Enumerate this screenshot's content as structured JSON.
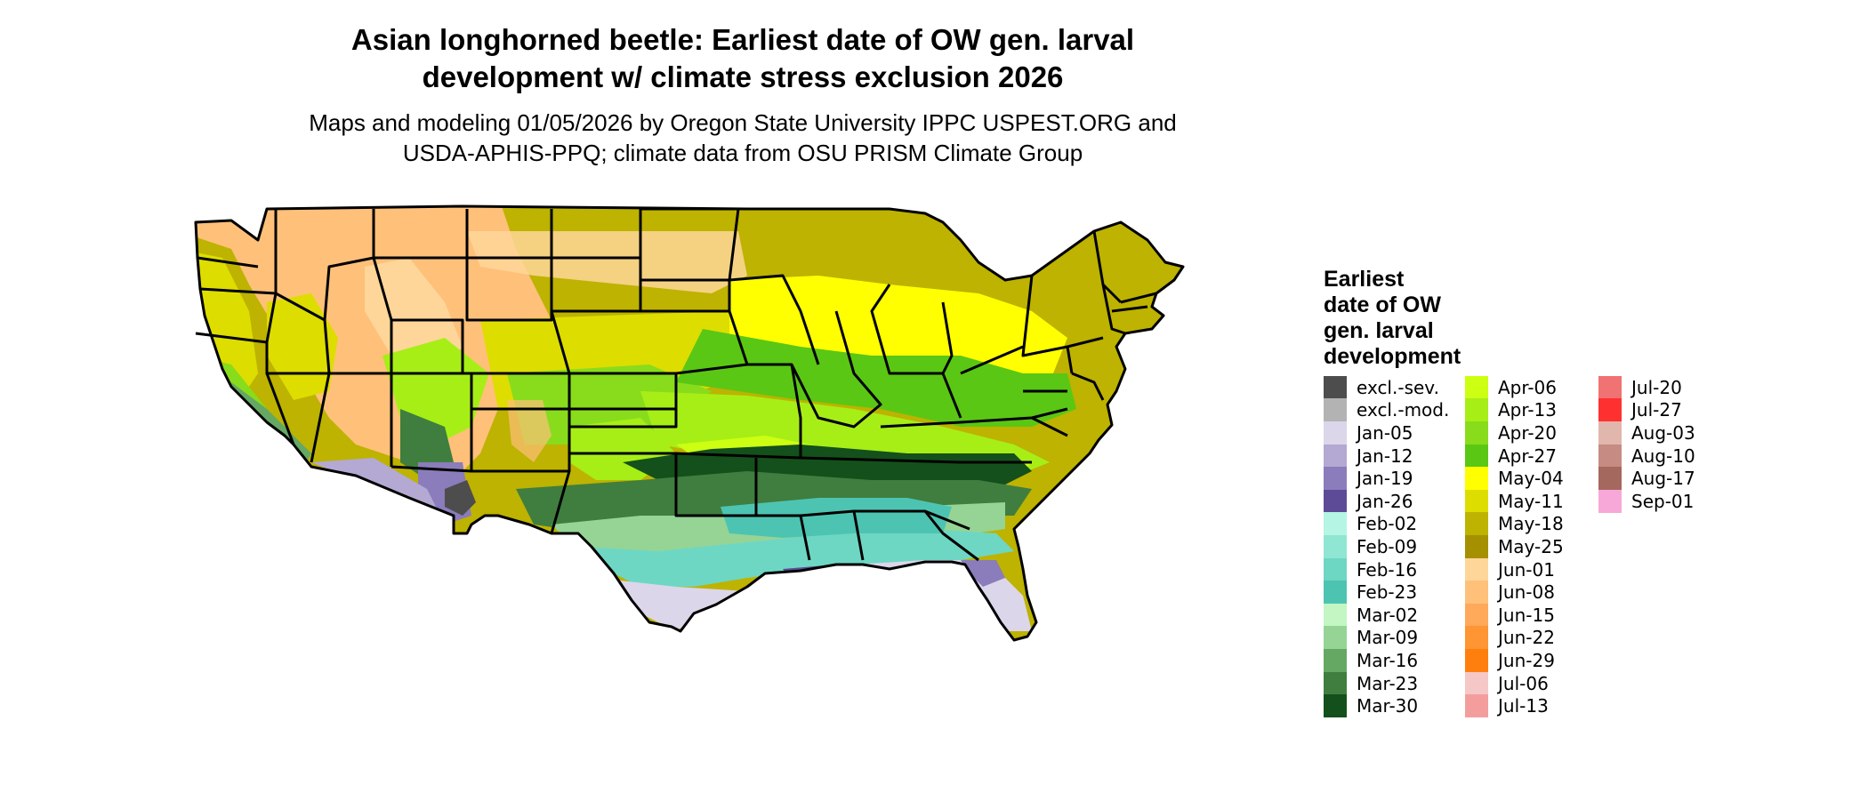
{
  "title": {
    "line1": "Asian longhorned beetle: Earliest date of OW gen. larval",
    "line2": "development w/ climate stress exclusion 2026"
  },
  "subtitle": {
    "line1": "Maps and modeling 01/05/2026 by Oregon State University IPPC USPEST.ORG and",
    "line2": "USDA-APHIS-PPQ; climate data from OSU PRISM Climate Group"
  },
  "map": {
    "region": "Contiguous United States",
    "colors": {
      "state_border": "#000000",
      "background": "#ffffff"
    }
  },
  "legend": {
    "title": [
      "Earliest",
      "date of OW",
      "gen. larval",
      "development"
    ],
    "columns": [
      [
        {
          "label": "excl.-sev.",
          "color": "#4d4d4d"
        },
        {
          "label": "excl.-mod.",
          "color": "#b3b3b3"
        },
        {
          "label": "Jan-05",
          "color": "#dcd6ea"
        },
        {
          "label": "Jan-12",
          "color": "#b3a9d2"
        },
        {
          "label": "Jan-19",
          "color": "#8b7cbb"
        },
        {
          "label": "Jan-26",
          "color": "#5d4b97"
        },
        {
          "label": "Feb-02",
          "color": "#b4f5e4"
        },
        {
          "label": "Feb-09",
          "color": "#8fe6d2"
        },
        {
          "label": "Feb-16",
          "color": "#6dd7c4"
        },
        {
          "label": "Feb-23",
          "color": "#4dc4b2"
        },
        {
          "label": "Mar-02",
          "color": "#c3f6c3"
        },
        {
          "label": "Mar-09",
          "color": "#95d495"
        },
        {
          "label": "Mar-16",
          "color": "#64a864"
        },
        {
          "label": "Mar-23",
          "color": "#3f7e3f"
        },
        {
          "label": "Mar-30",
          "color": "#14501b"
        }
      ],
      [
        {
          "label": "Apr-06",
          "color": "#cdff12"
        },
        {
          "label": "Apr-13",
          "color": "#a7ee17"
        },
        {
          "label": "Apr-20",
          "color": "#88dc1b"
        },
        {
          "label": "Apr-27",
          "color": "#5ac714"
        },
        {
          "label": "May-04",
          "color": "#ffff00"
        },
        {
          "label": "May-11",
          "color": "#dedd00"
        },
        {
          "label": "May-18",
          "color": "#bdb300"
        },
        {
          "label": "May-25",
          "color": "#a59000"
        },
        {
          "label": "Jun-01",
          "color": "#ffd699"
        },
        {
          "label": "Jun-08",
          "color": "#ffc07a"
        },
        {
          "label": "Jun-15",
          "color": "#ffa95a"
        },
        {
          "label": "Jun-22",
          "color": "#ff9533"
        },
        {
          "label": "Jun-29",
          "color": "#ff7f0e"
        },
        {
          "label": "Jul-06",
          "color": "#f6c7c7"
        },
        {
          "label": "Jul-13",
          "color": "#f49d9d"
        }
      ],
      [
        {
          "label": "Jul-20",
          "color": "#f07272"
        },
        {
          "label": "Jul-27",
          "color": "#ff3030"
        },
        {
          "label": "Aug-03",
          "color": "#e0b6ad"
        },
        {
          "label": "Aug-10",
          "color": "#c68b82"
        },
        {
          "label": "Aug-17",
          "color": "#a4685e"
        },
        {
          "label": "Sep-01",
          "color": "#f7a8d8"
        }
      ]
    ]
  }
}
